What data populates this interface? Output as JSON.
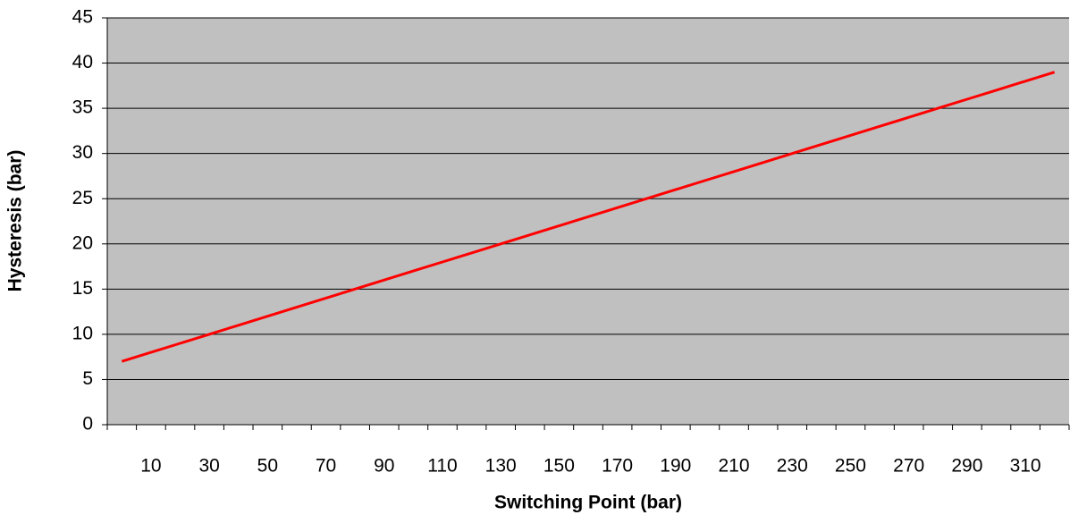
{
  "chart_data": {
    "type": "line",
    "x_label": "Switching Point (bar)",
    "y_label": "Hysteresis (bar)",
    "categories": [
      null,
      10,
      null,
      30,
      null,
      50,
      null,
      70,
      null,
      90,
      null,
      110,
      null,
      130,
      null,
      150,
      null,
      170,
      null,
      190,
      null,
      210,
      null,
      230,
      null,
      250,
      null,
      270,
      null,
      290,
      null,
      310,
      null
    ],
    "series": [
      {
        "name": "Hysteresis",
        "color": "#ff0000",
        "values": [
          7,
          8,
          9,
          10,
          11,
          12,
          13,
          14,
          15,
          16,
          17,
          18,
          19,
          20,
          21,
          22,
          23,
          24,
          25,
          26,
          27,
          28,
          29,
          30,
          31,
          32,
          33,
          34,
          35,
          36,
          37,
          38,
          39
        ]
      }
    ],
    "ylim": [
      0,
      45
    ],
    "yticks": [
      0,
      5,
      10,
      15,
      20,
      25,
      30,
      35,
      40,
      45
    ],
    "grid": true,
    "plot_background": "#c0c0c0"
  }
}
